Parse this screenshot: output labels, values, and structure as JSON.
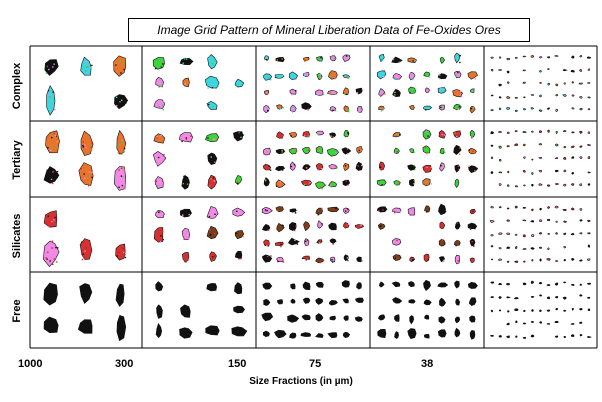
{
  "title": "Image Grid Pattern of Mineral Liberation Data of Fe-Oxides Ores",
  "rows": [
    {
      "label": "Complex"
    },
    {
      "label": "Tertiary"
    },
    {
      "label": "Silicates"
    },
    {
      "label": "Free"
    }
  ],
  "x_ticks": [
    "1000",
    "300",
    "150",
    "75",
    "38"
  ],
  "x_axis_label": "Size Fractions (in µm)",
  "colors": {
    "grid_line": "#000000",
    "magenta": "#f08ae6",
    "cyan": "#3cd6e0",
    "black": "#111111",
    "orange": "#e8742c",
    "green": "#3cd43c",
    "red": "#d83030",
    "brown": "#7a3d1a"
  }
}
